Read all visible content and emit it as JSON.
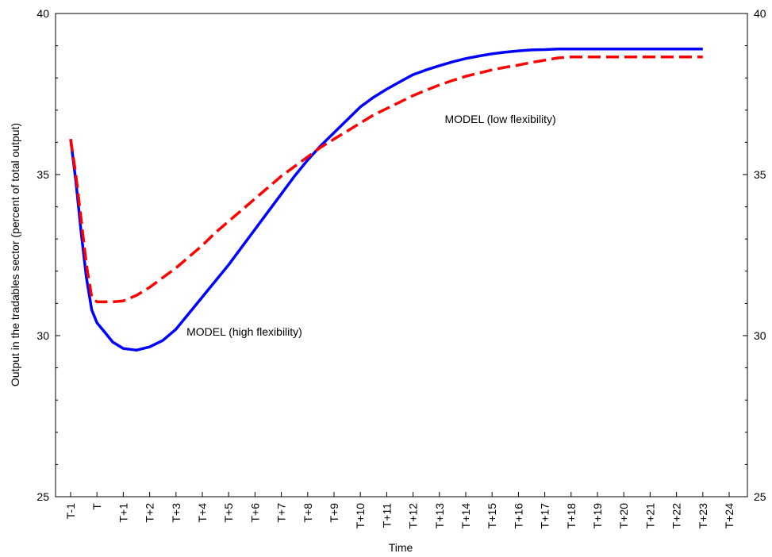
{
  "chart_data": {
    "type": "line",
    "xlabel": "Time",
    "ylabel": "Output in the tradables sector (percent of total output)",
    "ylim": [
      25,
      40
    ],
    "yticks": [
      "25",
      "30",
      "35",
      "40"
    ],
    "grid": false,
    "legend": "none",
    "categories": [
      "T-1",
      "T",
      "T+1",
      "T+2",
      "T+3",
      "T+4",
      "T+5",
      "T+6",
      "T+7",
      "T+8",
      "T+9",
      "T+10",
      "T+11",
      "T+12",
      "T+13",
      "T+14",
      "T+15",
      "T+16",
      "T+17",
      "T+18",
      "T+19",
      "T+20",
      "T+21",
      "T+22",
      "T+23",
      "T+24"
    ],
    "x": [
      0,
      0.2,
      0.4,
      0.6,
      0.8,
      1,
      1.3,
      1.6,
      2,
      2.5,
      3,
      3.5,
      4,
      4.5,
      5,
      5.5,
      6,
      6.5,
      7,
      7.5,
      8,
      8.5,
      9,
      9.5,
      10,
      10.5,
      11,
      11.5,
      12,
      12.5,
      13,
      13.5,
      14,
      14.5,
      15,
      15.5,
      16,
      16.5,
      17,
      17.5,
      18,
      18.5,
      19,
      19.5,
      20,
      20.5,
      21,
      21.5,
      22,
      22.5,
      23,
      23.5,
      24
    ],
    "series": [
      {
        "color": "#0000ff",
        "dash": "solid",
        "values": [
          36.1,
          34.8,
          33.2,
          31.8,
          30.8,
          30.4,
          30.1,
          29.8,
          29.6,
          29.55,
          29.65,
          29.85,
          30.2,
          30.7,
          31.2,
          31.7,
          32.2,
          32.75,
          33.3,
          33.85,
          34.4,
          34.95,
          35.45,
          35.9,
          36.3,
          36.7,
          37.1,
          37.4,
          37.65,
          37.88,
          38.1,
          38.25,
          38.38,
          38.5,
          38.6,
          38.68,
          38.75,
          38.8,
          38.84,
          38.87,
          38.88,
          38.9,
          38.9,
          38.9,
          38.9,
          38.9,
          38.9,
          38.9,
          38.9,
          38.9,
          38.9,
          38.9,
          38.9
        ]
      },
      {
        "color": "#ff0000",
        "dash": "dashed",
        "values": [
          36.1,
          35.0,
          33.6,
          32.2,
          31.2,
          31.05,
          31.05,
          31.05,
          31.08,
          31.25,
          31.5,
          31.8,
          32.1,
          32.45,
          32.8,
          33.2,
          33.55,
          33.9,
          34.25,
          34.6,
          34.95,
          35.25,
          35.55,
          35.85,
          36.1,
          36.35,
          36.6,
          36.85,
          37.05,
          37.25,
          37.45,
          37.62,
          37.78,
          37.92,
          38.05,
          38.15,
          38.25,
          38.33,
          38.4,
          38.48,
          38.55,
          38.62,
          38.65,
          38.65,
          38.65,
          38.65,
          38.65,
          38.65,
          38.65,
          38.65,
          38.65,
          38.65,
          38.65
        ]
      }
    ],
    "annotations": [
      {
        "text": "MODEL (high flexibility)",
        "x": 4.4,
        "y": 30.0
      },
      {
        "text": "MODEL (low flexibility)",
        "x": 14.2,
        "y": 36.6
      }
    ]
  }
}
